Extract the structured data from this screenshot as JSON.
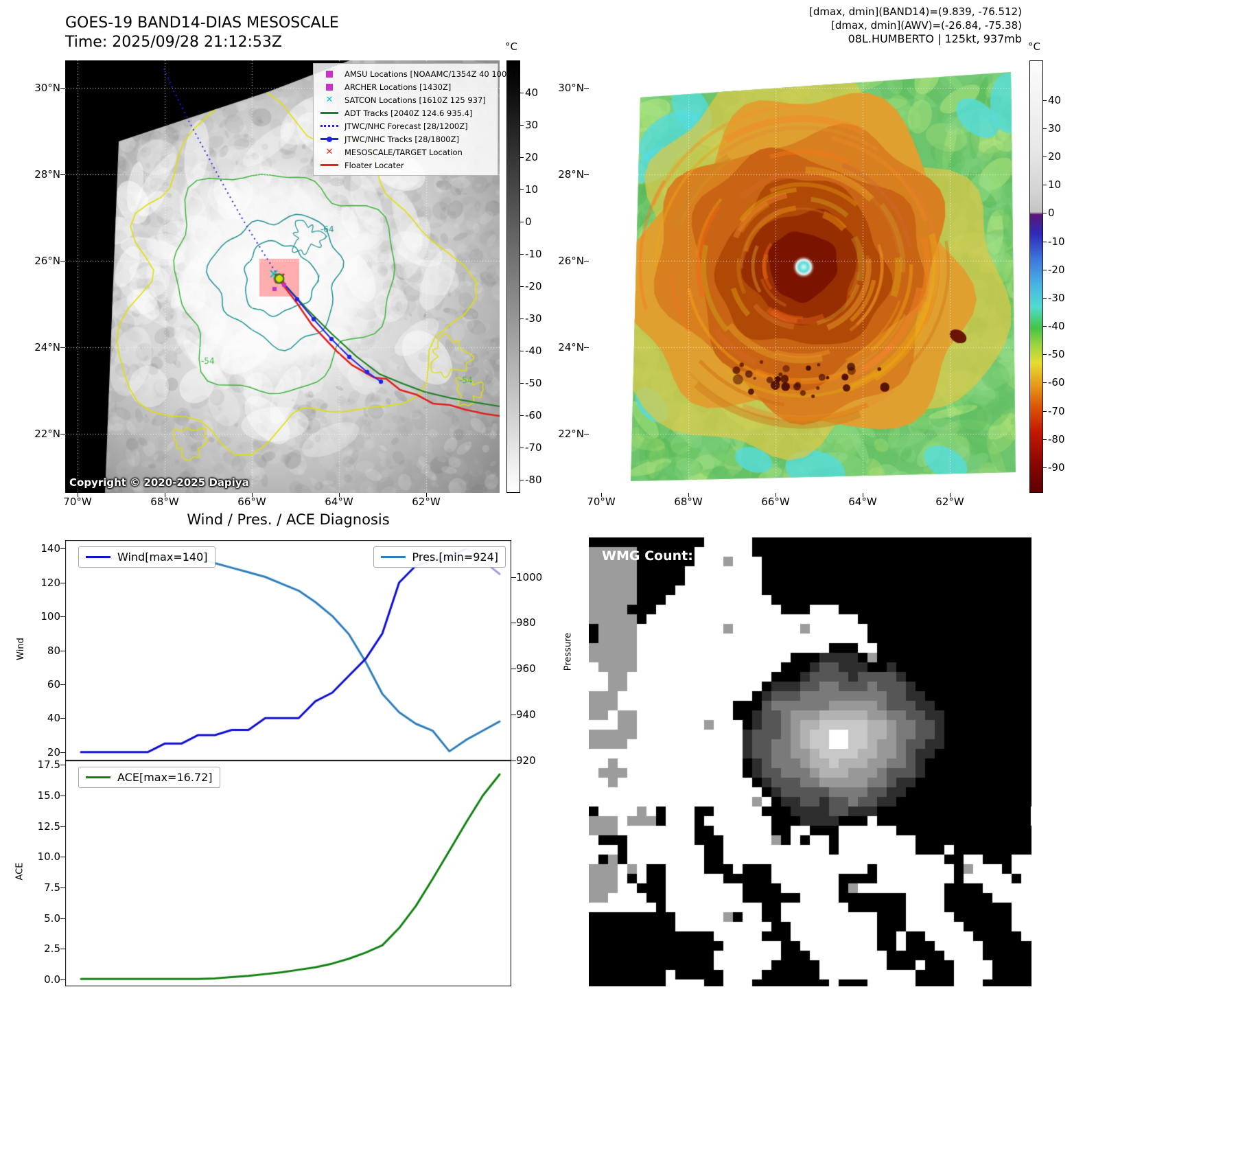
{
  "panel_band14": {
    "title": "GOES-19 BAND14-DIAS MESOSCALE",
    "time": "Time: 2025/09/28 21:12:53Z",
    "copyright": "Copyright © 2020-2025 Dapiya",
    "x_ticks": [
      "70°W",
      "68°W",
      "66°W",
      "64°W",
      "62°W"
    ],
    "y_ticks": [
      "30°N",
      "28°N",
      "26°N",
      "24°N",
      "22°N"
    ],
    "colorbar": {
      "unit": "°C",
      "vmax": 50,
      "vmin": -84,
      "ticks": [
        40,
        30,
        20,
        10,
        0,
        -10,
        -20,
        -30,
        -40,
        -50,
        -60,
        -70,
        -80
      ]
    },
    "legend": [
      {
        "label": "AMSU Locations [NOAAMC/1354Z 40 1003]",
        "marker": "square",
        "color": "#c832c8"
      },
      {
        "label": "ARCHER Locations [1430Z]",
        "marker": "square",
        "color": "#c832c8"
      },
      {
        "label": "SATCON Locations [1610Z 125 937]",
        "marker": "x",
        "color": "#00c8c8"
      },
      {
        "label": "ADT Tracks [2040Z 124.6 935.4]",
        "marker": "line",
        "color": "#1a8022"
      },
      {
        "label": "JTWC/NHC Forecast [28/1200Z]",
        "marker": "dotted",
        "color": "#2323e6"
      },
      {
        "label": "JTWC/NHC Tracks [28/1800Z]",
        "marker": "line-dot",
        "color": "#2323e6"
      },
      {
        "label": "MESOSCALE/TARGET Location",
        "marker": "x",
        "color": "#e62323"
      },
      {
        "label": "Floater Locater",
        "marker": "line",
        "color": "#e62323"
      }
    ],
    "contour_labels": [
      "-64",
      "-54",
      "-54"
    ]
  },
  "panel_awv": {
    "header": [
      "[dmax, dmin](BAND14)=(9.839, -76.512)",
      "[dmax, dmin](AWV)=(-26.84, -75.38)",
      "08L.HUMBERTO | 125kt, 937mb"
    ],
    "x_ticks": [
      "70°W",
      "68°W",
      "66°W",
      "64°W",
      "62°W"
    ],
    "y_ticks": [
      "30°N",
      "28°N",
      "26°N",
      "24°N",
      "22°N"
    ],
    "colorbar": {
      "unit": "°C",
      "vmax": 54,
      "vmin": -99,
      "ticks": [
        40,
        30,
        20,
        10,
        0,
        -10,
        -20,
        -30,
        -40,
        -50,
        -60,
        -70,
        -80,
        -90
      ]
    }
  },
  "wmg": {
    "label": "WMG Count: 1"
  },
  "chart_data": [
    {
      "type": "line",
      "title": "Wind / Pres. / ACE Diagnosis",
      "x_note": "time steps (no x tick labels shown)",
      "legend_position": "upper-left and upper-right",
      "series": [
        {
          "name": "Wind[max=140]",
          "ylabel": "Wind",
          "axis": "left",
          "color": "#0d0dcf",
          "forecast_color": "#9a9ae8",
          "forecast_split": 23,
          "ylim": [
            15,
            145
          ],
          "yticks": [
            140,
            120,
            100,
            80,
            60,
            40,
            20
          ],
          "values": [
            20,
            20,
            20,
            20,
            20,
            25,
            25,
            30,
            30,
            33,
            33,
            40,
            40,
            40,
            50,
            55,
            65,
            75,
            90,
            120,
            130,
            133,
            135,
            140,
            133,
            125
          ]
        },
        {
          "name": "Pres.[min=924]",
          "ylabel": "Pressure",
          "axis": "right",
          "color": "#2e7ebc",
          "ylim": [
            920,
            1016
          ],
          "yticks": [
            1000,
            980,
            960,
            940,
            920
          ],
          "values": [
            1008,
            1008,
            1008,
            1008,
            1008,
            1008,
            1008,
            1008,
            1006,
            1004,
            1002,
            1000,
            997,
            994,
            989,
            983,
            975,
            963,
            949,
            941,
            936,
            933,
            924,
            929,
            933,
            937
          ]
        }
      ]
    },
    {
      "type": "line",
      "series": [
        {
          "name": "ACE[max=16.72]",
          "ylabel": "ACE",
          "axis": "left",
          "color": "#128012",
          "ylim": [
            -0.55,
            17.85
          ],
          "yticks": [
            17.5,
            15.0,
            12.5,
            10.0,
            7.5,
            5.0,
            2.5,
            0.0
          ],
          "yticks_labels": [
            "17.5",
            "15.0",
            "12.5",
            "10.0",
            "7.5",
            "5.0",
            "2.5",
            "0.0"
          ],
          "values": [
            0.05,
            0.05,
            0.05,
            0.05,
            0.05,
            0.05,
            0.05,
            0.05,
            0.1,
            0.2,
            0.3,
            0.45,
            0.6,
            0.8,
            1.0,
            1.3,
            1.7,
            2.2,
            2.8,
            4.2,
            6.0,
            8.2,
            10.5,
            12.8,
            15.0,
            16.72
          ]
        }
      ]
    }
  ]
}
